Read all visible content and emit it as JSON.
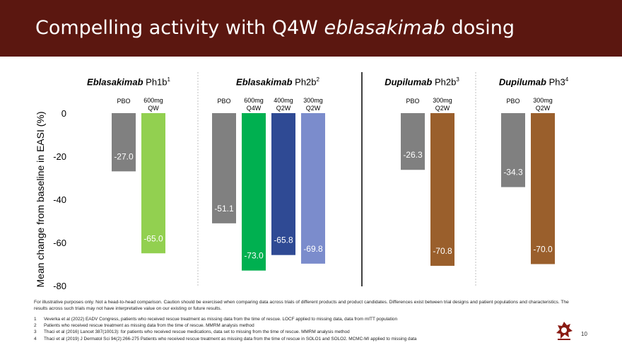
{
  "header": {
    "title_prefix": "Compelling activity with Q4W ",
    "title_emphasis": "eblasakimab",
    "title_suffix": " dosing"
  },
  "chart_data": {
    "type": "bar",
    "ylabel": "Mean change from baseline in EASI (%)",
    "ylim": [
      -80,
      0
    ],
    "yticks": [
      0,
      -20,
      -40,
      -60,
      -80
    ],
    "groups": [
      {
        "title_italic": "Eblasakimab",
        "title_rest": " Ph1b",
        "sup": "1",
        "bars": [
          {
            "label": "PBO",
            "value": -27.0,
            "display": "-27.0",
            "color": "#808080"
          },
          {
            "label": "600mg\nQW",
            "value": -65.0,
            "display": "-65.0",
            "color": "#92d050"
          }
        ]
      },
      {
        "title_italic": "Eblasakimab",
        "title_rest": " Ph2b",
        "sup": "2",
        "bars": [
          {
            "label": "PBO",
            "value": -51.1,
            "display": "-51.1",
            "color": "#808080"
          },
          {
            "label": "600mg\nQ4W",
            "value": -73.0,
            "display": "-73.0",
            "color": "#00b050"
          },
          {
            "label": "400mg\nQ2W",
            "value": -65.8,
            "display": "-65.8",
            "color": "#2f4a94"
          },
          {
            "label": "300mg\nQ2W",
            "value": -69.8,
            "display": "-69.8",
            "color": "#7b8ccc"
          }
        ]
      },
      {
        "title_italic": "Dupilumab",
        "title_rest": " Ph2b",
        "sup": "3",
        "bars": [
          {
            "label": "PBO",
            "value": -26.3,
            "display": "-26.3",
            "color": "#808080"
          },
          {
            "label": "300mg\nQ2W",
            "value": -70.8,
            "display": "-70.8",
            "color": "#9a5f2c"
          }
        ]
      },
      {
        "title_italic": "Dupilumab",
        "title_rest": " Ph3",
        "sup": "4",
        "bars": [
          {
            "label": "PBO",
            "value": -34.3,
            "display": "-34.3",
            "color": "#808080"
          },
          {
            "label": "300mg\nQ2W",
            "value": -70.0,
            "display": "-70.0",
            "color": "#9a5f2c"
          }
        ]
      }
    ]
  },
  "disclaimer": "For illustrative purposes only. Not a head-to-head comparison. Caution should be exercised when comparing data across trials of different products and product candidates. Differences exist between trial designs and patient populations and characteristics. The results across such trials may not have interpretative value on our existing or future results.",
  "references": [
    {
      "num": "1",
      "text": "Veverka et al (2022) EADV Congress, patients who received rescue treatment as missing data from the time of rescue. LOCF applied to missing data, data from mITT population"
    },
    {
      "num": "2",
      "text": "Patients who received rescue treatment as missing data from the time of rescue. MMRM analysis method"
    },
    {
      "num": "3",
      "text": "Thaci et al (2016) Lancet 387(10013): for patients who received rescue medications, data set to missing from the time of rescue. MMRM analysis method"
    },
    {
      "num": "4",
      "text": "Thaci et al (2019) J Dermatol Sci 94(2):266-275 Patients who received rescue treatment as missing data from the time of rescue in SOLO1 and SOLO2. MCMC-MI applied to missing data"
    }
  ],
  "page_number": "10"
}
